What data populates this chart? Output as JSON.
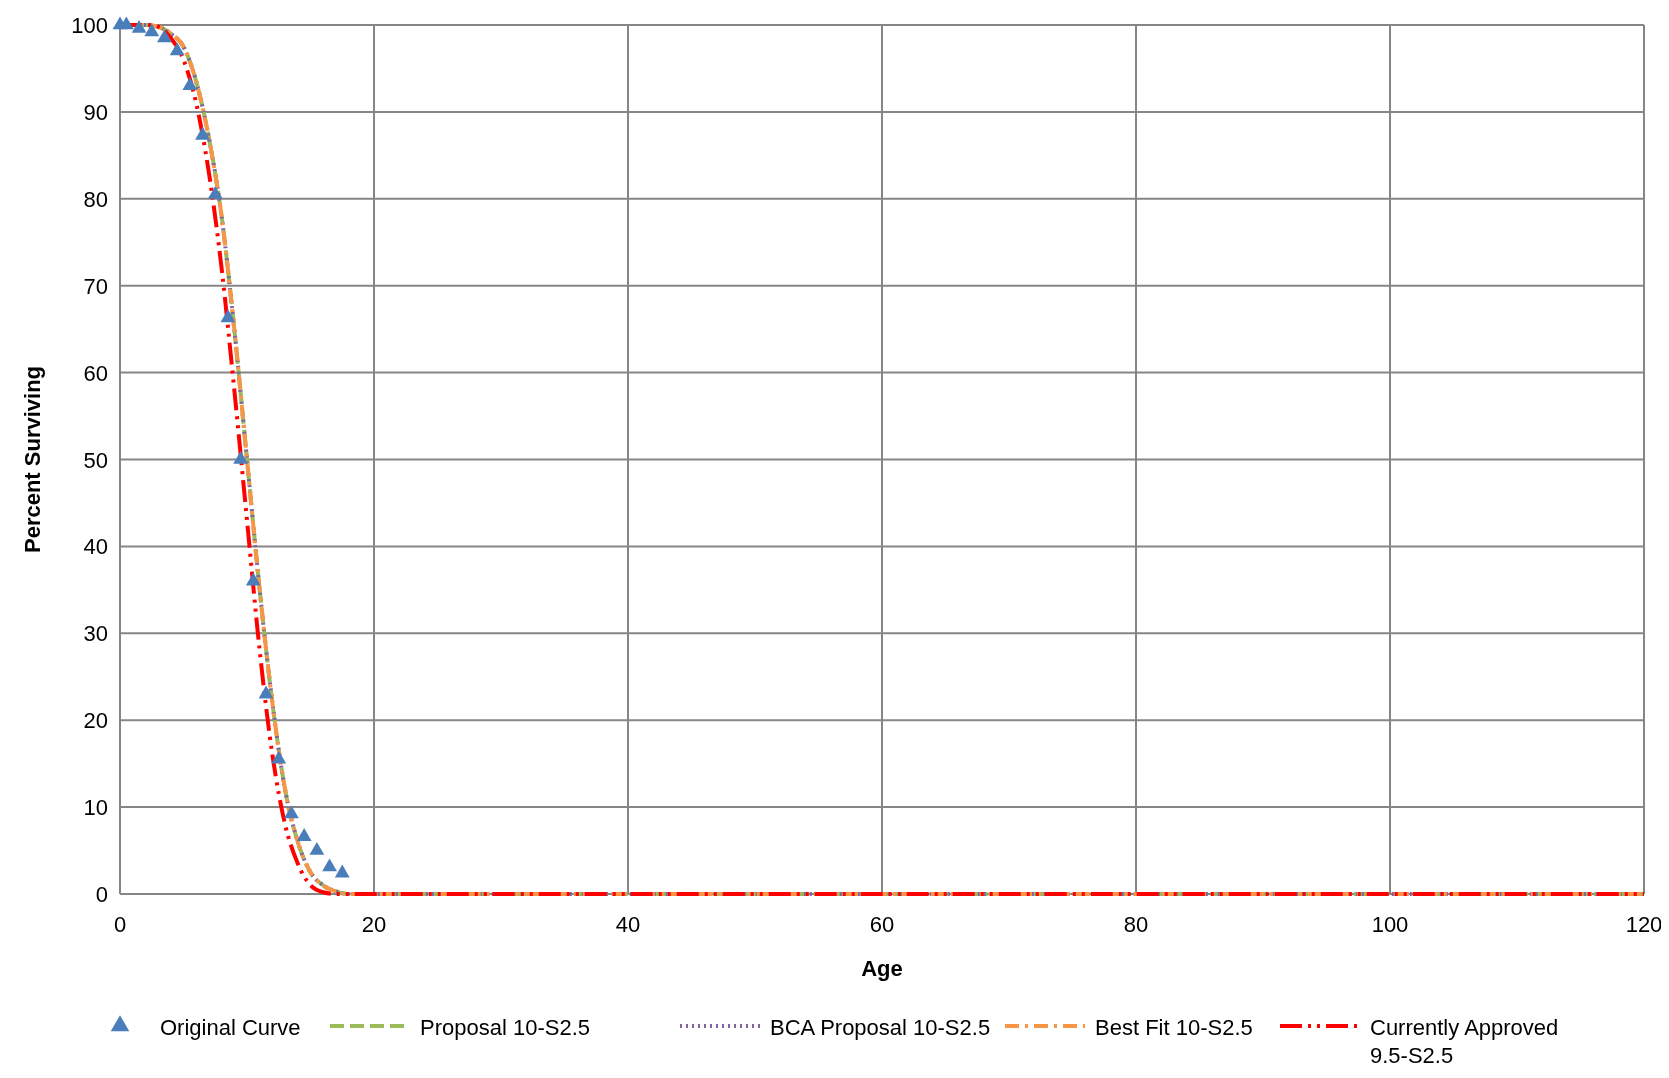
{
  "chart_data": {
    "type": "line",
    "xlabel": "Age",
    "ylabel": "Percent Surviving",
    "xlim": [
      0,
      120
    ],
    "xticks": [
      0,
      20,
      40,
      60,
      80,
      100,
      120
    ],
    "ylim": [
      0,
      100
    ],
    "yticks": [
      0,
      10,
      20,
      30,
      40,
      50,
      60,
      70,
      80,
      90,
      100
    ],
    "grid": true,
    "legend": "bottom",
    "series": [
      {
        "name": "Original Curve",
        "type": "scatter",
        "marker": "triangle",
        "color": "#4a7ebb",
        "x": [
          0,
          0.5,
          1.5,
          2.5,
          3.5,
          4.5,
          5.5,
          6.5,
          7.5,
          8.5,
          9.5,
          10.5,
          11.5,
          12.5,
          13.5,
          14.5,
          15.5,
          16.5,
          17.5
        ],
        "values": [
          100,
          100,
          99.6,
          99.2,
          98.5,
          97,
          93,
          87.3,
          80.5,
          66.3,
          50,
          36,
          23,
          15.5,
          9.2,
          6.6,
          5,
          3.1,
          2.4
        ]
      },
      {
        "name": "Proposal 10-S2.5",
        "type": "line",
        "line_style": "dashed",
        "color": "#9bbb59",
        "x": [
          0,
          1,
          2,
          3,
          4,
          5,
          6,
          7,
          8,
          9,
          10,
          11,
          12,
          13,
          14,
          15,
          16,
          17,
          18,
          120
        ],
        "values": [
          100,
          100,
          100,
          99.8,
          99,
          97.5,
          93.5,
          87,
          78,
          65,
          50,
          35,
          22,
          12,
          6,
          2.5,
          1,
          0.3,
          0,
          0
        ]
      },
      {
        "name": "BCA Proposal 10-S2.5",
        "type": "line",
        "line_style": "dotted",
        "color": "#8064a2",
        "x": [
          0,
          1,
          2,
          3,
          4,
          5,
          6,
          7,
          8,
          9,
          10,
          11,
          12,
          13,
          14,
          15,
          16,
          17,
          18,
          120
        ],
        "values": [
          100,
          100,
          100,
          99.8,
          99,
          97.5,
          93.5,
          87,
          78,
          65,
          50,
          35,
          22,
          12,
          6,
          2.5,
          1,
          0.3,
          0,
          0
        ]
      },
      {
        "name": "Best Fit 10-S2.5",
        "type": "line",
        "line_style": "dashdot",
        "color": "#f79646",
        "x": [
          0,
          1,
          2,
          3,
          4,
          5,
          6,
          7,
          8,
          9,
          10,
          11,
          12,
          13,
          14,
          15,
          16,
          17,
          18,
          120
        ],
        "values": [
          100,
          100,
          100,
          99.8,
          99,
          97.5,
          93.5,
          87,
          78,
          65,
          50,
          35,
          22,
          12,
          6,
          2.5,
          1,
          0.3,
          0,
          0
        ]
      },
      {
        "name": "Currently Approved 9.5-S2.5",
        "type": "line",
        "line_style": "dashdotdot",
        "color": "#ff0000",
        "x": [
          0,
          1,
          2,
          3,
          4,
          5,
          6,
          7,
          8,
          9,
          10,
          11,
          12,
          13,
          14,
          15,
          16,
          17,
          120
        ],
        "values": [
          100,
          100,
          100,
          99.8,
          98.5,
          96,
          91,
          83,
          72,
          58,
          43,
          28,
          16,
          8,
          3.5,
          1,
          0.2,
          0,
          0
        ]
      }
    ]
  }
}
